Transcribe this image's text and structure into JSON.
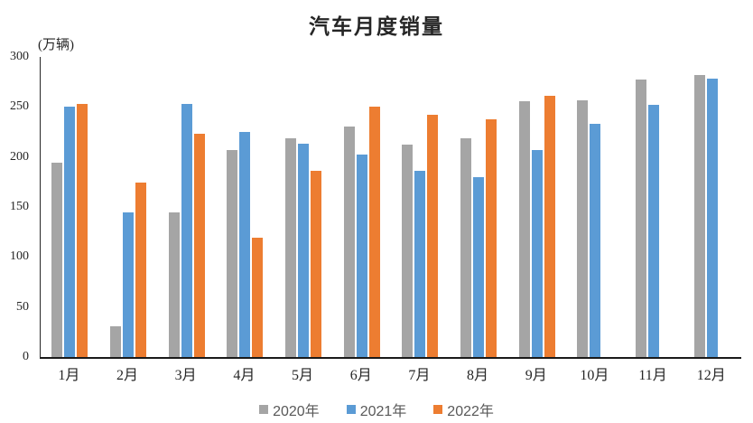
{
  "title": "汽车月度销量",
  "unit_label": "(万辆)",
  "legend": {
    "items": [
      {
        "label": "2020年",
        "color": "#A5A5A5"
      },
      {
        "label": "2021年",
        "color": "#5B9BD5"
      },
      {
        "label": "2022年",
        "color": "#ED7D31"
      }
    ],
    "position": "bottom"
  },
  "colors": {
    "series_2020": "#A5A5A5",
    "series_2021": "#5B9BD5",
    "series_2022": "#ED7D31",
    "axis_line": "#262626",
    "text": "#262626",
    "legend_text": "#595959",
    "background": "#FFFFFF"
  },
  "chart_data": {
    "type": "bar",
    "title": "汽车月度销量",
    "unit": "万辆",
    "xlabel": "",
    "ylabel": "(万辆)",
    "categories": [
      "1月",
      "2月",
      "3月",
      "4月",
      "5月",
      "6月",
      "7月",
      "8月",
      "9月",
      "10月",
      "11月",
      "12月"
    ],
    "series": [
      {
        "name": "2020年",
        "color": "#A5A5A5",
        "values": [
          194,
          31,
          145,
          207,
          219,
          230,
          212,
          219,
          256,
          257,
          277,
          282
        ]
      },
      {
        "name": "2021年",
        "color": "#5B9BD5",
        "values": [
          250,
          145,
          253,
          225,
          213,
          202,
          186,
          180,
          207,
          233,
          252,
          278
        ]
      },
      {
        "name": "2022年",
        "color": "#ED7D31",
        "values": [
          253,
          174,
          223,
          119,
          186,
          250,
          242,
          238,
          261,
          null,
          null,
          null
        ]
      }
    ],
    "ylim": [
      0,
      300
    ],
    "ytick_step": 50,
    "yticks": [
      0,
      50,
      100,
      150,
      200,
      250,
      300
    ],
    "grid": false,
    "legend_position": "bottom"
  }
}
